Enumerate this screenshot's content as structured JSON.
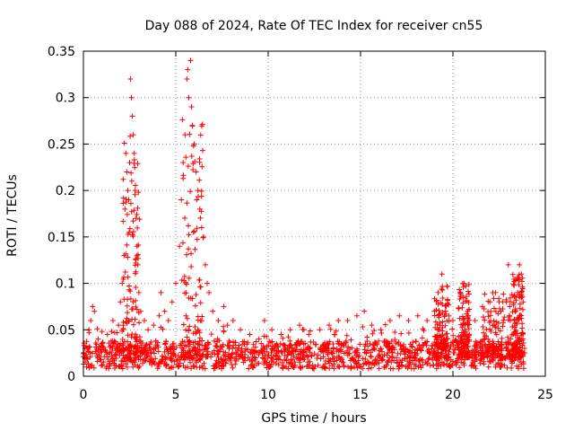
{
  "chart_data": {
    "type": "scatter",
    "title": "Day 088 of 2024, Rate Of TEC Index for receiver cn55",
    "xlabel": "GPS time / hours",
    "ylabel": "ROTI / TECUs",
    "xlim": [
      0,
      25
    ],
    "ylim": [
      0,
      0.35
    ],
    "x_ticks": [
      0,
      5,
      10,
      15,
      20,
      25
    ],
    "x_tick_labels": [
      "0",
      "5",
      "10",
      "15",
      "20",
      "25"
    ],
    "y_ticks": [
      0,
      0.05,
      0.1,
      0.15,
      0.2,
      0.25,
      0.3,
      0.35
    ],
    "y_tick_labels": [
      "0",
      "0.05",
      "0.1",
      "0.15",
      "0.2",
      "0.25",
      "0.3",
      "0.35"
    ],
    "grid": true,
    "marker": "+",
    "marker_color": "#ff0000",
    "series": [
      {
        "name": "ROTI",
        "description": "dense scatter, baseline ~0.01-0.04 across 0-24 h",
        "points": [
          [
            0.1,
            0.02
          ],
          [
            0.2,
            0.03
          ],
          [
            0.3,
            0.05
          ],
          [
            0.4,
            0.06
          ],
          [
            0.5,
            0.075
          ],
          [
            0.6,
            0.07
          ],
          [
            0.8,
            0.04
          ],
          [
            1.0,
            0.035
          ],
          [
            1.3,
            0.045
          ],
          [
            1.6,
            0.06
          ],
          [
            1.9,
            0.055
          ],
          [
            2.0,
            0.08
          ],
          [
            2.1,
            0.1
          ],
          [
            2.2,
            0.13
          ],
          [
            2.25,
            0.18
          ],
          [
            2.3,
            0.24
          ],
          [
            2.35,
            0.22
          ],
          [
            2.4,
            0.2
          ],
          [
            2.45,
            0.19
          ],
          [
            2.5,
            0.23
          ],
          [
            2.55,
            0.32
          ],
          [
            2.6,
            0.3
          ],
          [
            2.65,
            0.28
          ],
          [
            2.7,
            0.26
          ],
          [
            2.75,
            0.24
          ],
          [
            2.8,
            0.2
          ],
          [
            2.85,
            0.17
          ],
          [
            2.9,
            0.14
          ],
          [
            2.95,
            0.12
          ],
          [
            3.0,
            0.09
          ],
          [
            3.1,
            0.07
          ],
          [
            3.3,
            0.06
          ],
          [
            3.5,
            0.05
          ],
          [
            3.8,
            0.055
          ],
          [
            4.1,
            0.065
          ],
          [
            4.2,
            0.09
          ],
          [
            4.4,
            0.07
          ],
          [
            4.6,
            0.06
          ],
          [
            4.8,
            0.08
          ],
          [
            5.0,
            0.1
          ],
          [
            5.2,
            0.14
          ],
          [
            5.3,
            0.19
          ],
          [
            5.4,
            0.23
          ],
          [
            5.5,
            0.26
          ],
          [
            5.6,
            0.32
          ],
          [
            5.65,
            0.33
          ],
          [
            5.7,
            0.3
          ],
          [
            5.8,
            0.34
          ],
          [
            5.85,
            0.29
          ],
          [
            5.9,
            0.27
          ],
          [
            6.0,
            0.25
          ],
          [
            6.1,
            0.22
          ],
          [
            6.2,
            0.2
          ],
          [
            6.3,
            0.18
          ],
          [
            6.4,
            0.16
          ],
          [
            6.5,
            0.15
          ],
          [
            6.6,
            0.12
          ],
          [
            6.7,
            0.1
          ],
          [
            6.8,
            0.09
          ],
          [
            7.0,
            0.07
          ],
          [
            7.3,
            0.06
          ],
          [
            7.6,
            0.075
          ],
          [
            7.8,
            0.055
          ],
          [
            8.1,
            0.06
          ],
          [
            8.5,
            0.05
          ],
          [
            9.0,
            0.045
          ],
          [
            9.5,
            0.04
          ],
          [
            9.8,
            0.06
          ],
          [
            10.2,
            0.05
          ],
          [
            10.7,
            0.045
          ],
          [
            11.2,
            0.05
          ],
          [
            11.7,
            0.055
          ],
          [
            12.2,
            0.045
          ],
          [
            12.8,
            0.05
          ],
          [
            13.3,
            0.055
          ],
          [
            13.8,
            0.06
          ],
          [
            14.3,
            0.06
          ],
          [
            14.8,
            0.065
          ],
          [
            15.2,
            0.07
          ],
          [
            15.6,
            0.055
          ],
          [
            16.1,
            0.05
          ],
          [
            16.6,
            0.06
          ],
          [
            17.1,
            0.065
          ],
          [
            17.6,
            0.06
          ],
          [
            18.1,
            0.065
          ],
          [
            18.6,
            0.06
          ],
          [
            19.0,
            0.07
          ],
          [
            19.2,
            0.09
          ],
          [
            19.4,
            0.11
          ],
          [
            19.6,
            0.07
          ],
          [
            20.0,
            0.06
          ],
          [
            20.4,
            0.09
          ],
          [
            20.6,
            0.1
          ],
          [
            20.8,
            0.07
          ],
          [
            21.2,
            0.06
          ],
          [
            21.6,
            0.075
          ],
          [
            22.0,
            0.08
          ],
          [
            22.3,
            0.09
          ],
          [
            22.6,
            0.07
          ],
          [
            22.9,
            0.08
          ],
          [
            23.0,
            0.12
          ],
          [
            23.1,
            0.06
          ],
          [
            23.5,
            0.09
          ],
          [
            23.6,
            0.12
          ],
          [
            23.7,
            0.11
          ],
          [
            23.8,
            0.08
          ]
        ]
      }
    ]
  }
}
